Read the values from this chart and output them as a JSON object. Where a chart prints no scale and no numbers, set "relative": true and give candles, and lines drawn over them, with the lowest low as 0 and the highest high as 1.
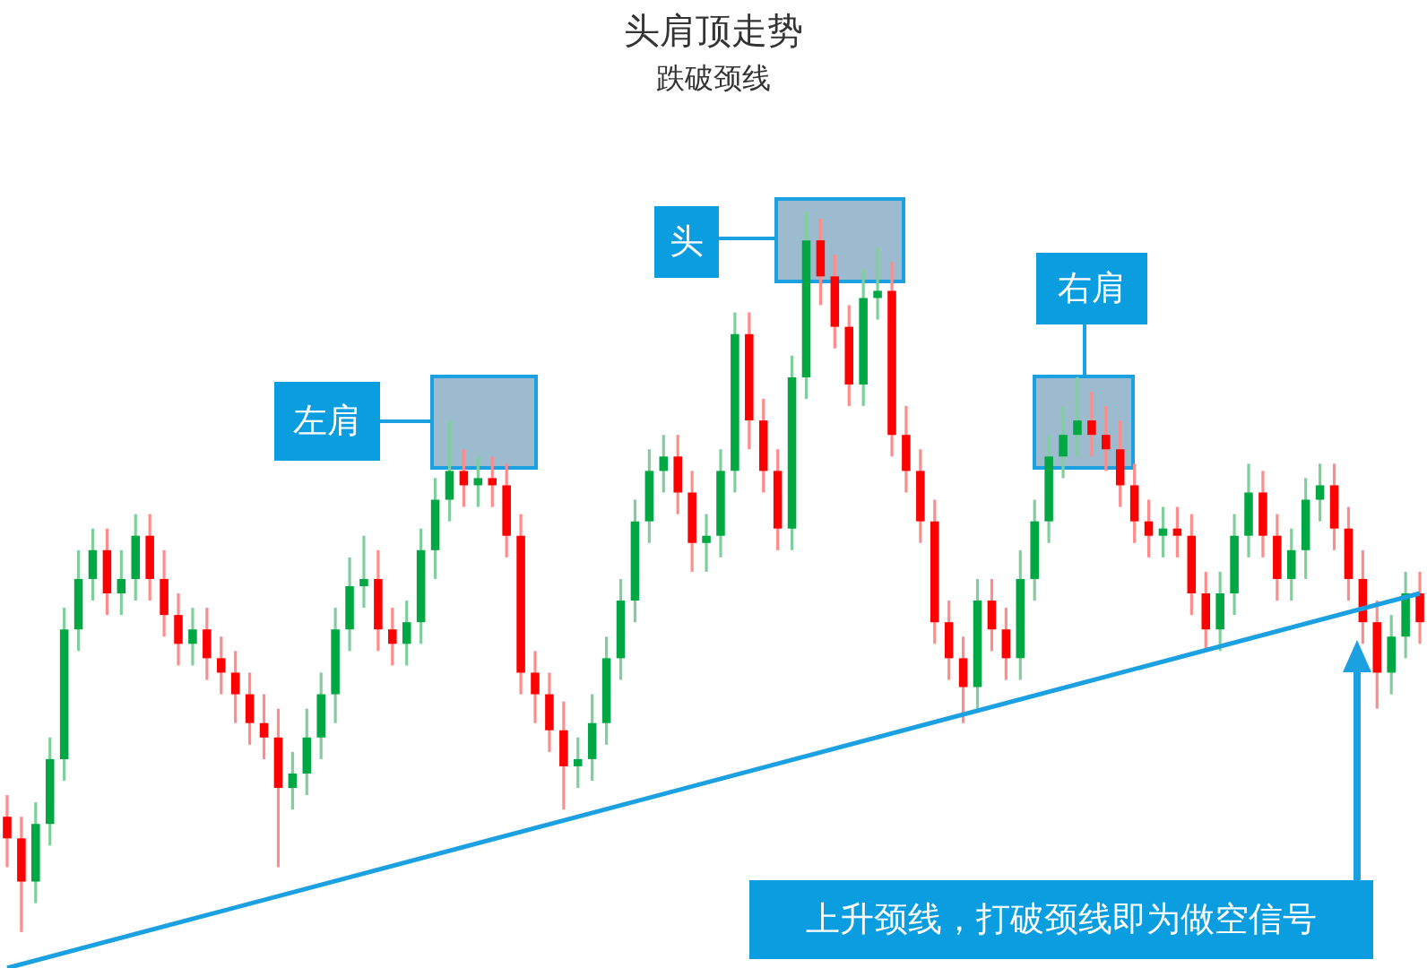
{
  "chart_data": {
    "type": "candlestick",
    "title": "头肩顶走势",
    "subtitle": "跌破颈线",
    "relative": true,
    "tick_labels": false,
    "categories": [
      null,
      null,
      null,
      null,
      null,
      null,
      null,
      null,
      null,
      null,
      null,
      null,
      null,
      null,
      null,
      null,
      null,
      null,
      null,
      null,
      null,
      null,
      null,
      null,
      null,
      null,
      null,
      null,
      null,
      null,
      null,
      null,
      null,
      null,
      null,
      null,
      null,
      null,
      null,
      null,
      null,
      null,
      null,
      null,
      null,
      null,
      null,
      null,
      null,
      null,
      null,
      null,
      null,
      null,
      null,
      null,
      null,
      null,
      null,
      null,
      null,
      null,
      null,
      null,
      null,
      null,
      null,
      null,
      null,
      null,
      null,
      null,
      null,
      null,
      null,
      null,
      null,
      null,
      null,
      null,
      null,
      null,
      null,
      null,
      null,
      null,
      null,
      null,
      null,
      null,
      null,
      null,
      null,
      null,
      null,
      null,
      null,
      null,
      null,
      null
    ],
    "ohlc": [
      [
        0.16,
        0.19,
        0.09,
        0.13
      ],
      [
        0.13,
        0.16,
        0.0,
        0.07
      ],
      [
        0.07,
        0.18,
        0.04,
        0.15
      ],
      [
        0.15,
        0.27,
        0.12,
        0.24
      ],
      [
        0.24,
        0.45,
        0.21,
        0.42
      ],
      [
        0.42,
        0.53,
        0.39,
        0.49
      ],
      [
        0.49,
        0.56,
        0.46,
        0.53
      ],
      [
        0.53,
        0.56,
        0.44,
        0.47
      ],
      [
        0.47,
        0.53,
        0.44,
        0.49
      ],
      [
        0.49,
        0.58,
        0.46,
        0.55
      ],
      [
        0.55,
        0.58,
        0.46,
        0.49
      ],
      [
        0.49,
        0.53,
        0.41,
        0.44
      ],
      [
        0.44,
        0.47,
        0.37,
        0.4
      ],
      [
        0.4,
        0.45,
        0.37,
        0.42
      ],
      [
        0.42,
        0.45,
        0.35,
        0.38
      ],
      [
        0.38,
        0.41,
        0.33,
        0.36
      ],
      [
        0.36,
        0.39,
        0.29,
        0.33
      ],
      [
        0.33,
        0.36,
        0.26,
        0.29
      ],
      [
        0.29,
        0.33,
        0.24,
        0.27
      ],
      [
        0.27,
        0.31,
        0.09,
        0.2
      ],
      [
        0.2,
        0.25,
        0.17,
        0.22
      ],
      [
        0.22,
        0.31,
        0.19,
        0.27
      ],
      [
        0.27,
        0.36,
        0.24,
        0.33
      ],
      [
        0.33,
        0.45,
        0.29,
        0.42
      ],
      [
        0.42,
        0.52,
        0.39,
        0.48
      ],
      [
        0.48,
        0.55,
        0.45,
        0.49
      ],
      [
        0.49,
        0.53,
        0.39,
        0.42
      ],
      [
        0.42,
        0.45,
        0.37,
        0.4
      ],
      [
        0.4,
        0.46,
        0.37,
        0.43
      ],
      [
        0.43,
        0.56,
        0.4,
        0.53
      ],
      [
        0.53,
        0.63,
        0.49,
        0.6
      ],
      [
        0.6,
        0.71,
        0.57,
        0.64
      ],
      [
        0.64,
        0.67,
        0.59,
        0.62
      ],
      [
        0.62,
        0.66,
        0.59,
        0.63
      ],
      [
        0.63,
        0.66,
        0.59,
        0.62
      ],
      [
        0.62,
        0.65,
        0.52,
        0.55
      ],
      [
        0.55,
        0.58,
        0.33,
        0.36
      ],
      [
        0.36,
        0.39,
        0.29,
        0.33
      ],
      [
        0.33,
        0.36,
        0.25,
        0.28
      ],
      [
        0.28,
        0.32,
        0.17,
        0.23
      ],
      [
        0.23,
        0.27,
        0.2,
        0.24
      ],
      [
        0.24,
        0.33,
        0.21,
        0.29
      ],
      [
        0.29,
        0.41,
        0.26,
        0.38
      ],
      [
        0.38,
        0.49,
        0.35,
        0.46
      ],
      [
        0.46,
        0.6,
        0.43,
        0.57
      ],
      [
        0.57,
        0.67,
        0.54,
        0.64
      ],
      [
        0.64,
        0.69,
        0.61,
        0.66
      ],
      [
        0.66,
        0.69,
        0.58,
        0.61
      ],
      [
        0.61,
        0.64,
        0.5,
        0.54
      ],
      [
        0.54,
        0.58,
        0.5,
        0.55
      ],
      [
        0.55,
        0.67,
        0.52,
        0.64
      ],
      [
        0.64,
        0.86,
        0.61,
        0.83
      ],
      [
        0.83,
        0.86,
        0.67,
        0.71
      ],
      [
        0.71,
        0.74,
        0.61,
        0.64
      ],
      [
        0.64,
        0.67,
        0.53,
        0.56
      ],
      [
        0.56,
        0.8,
        0.53,
        0.77
      ],
      [
        0.77,
        1.0,
        0.74,
        0.96
      ],
      [
        0.96,
        0.99,
        0.87,
        0.91
      ],
      [
        0.91,
        0.94,
        0.81,
        0.84
      ],
      [
        0.84,
        0.87,
        0.73,
        0.76
      ],
      [
        0.76,
        0.92,
        0.73,
        0.88
      ],
      [
        0.88,
        0.95,
        0.85,
        0.89
      ],
      [
        0.89,
        0.93,
        0.66,
        0.69
      ],
      [
        0.69,
        0.73,
        0.61,
        0.64
      ],
      [
        0.64,
        0.67,
        0.54,
        0.57
      ],
      [
        0.57,
        0.6,
        0.4,
        0.43
      ],
      [
        0.43,
        0.46,
        0.35,
        0.38
      ],
      [
        0.38,
        0.41,
        0.29,
        0.34
      ],
      [
        0.34,
        0.49,
        0.31,
        0.46
      ],
      [
        0.46,
        0.49,
        0.39,
        0.42
      ],
      [
        0.42,
        0.45,
        0.35,
        0.38
      ],
      [
        0.38,
        0.53,
        0.35,
        0.49
      ],
      [
        0.49,
        0.6,
        0.46,
        0.57
      ],
      [
        0.57,
        0.69,
        0.54,
        0.66
      ],
      [
        0.66,
        0.73,
        0.63,
        0.69
      ],
      [
        0.69,
        0.77,
        0.66,
        0.71
      ],
      [
        0.71,
        0.75,
        0.66,
        0.69
      ],
      [
        0.69,
        0.73,
        0.64,
        0.67
      ],
      [
        0.67,
        0.71,
        0.59,
        0.62
      ],
      [
        0.62,
        0.65,
        0.54,
        0.57
      ],
      [
        0.57,
        0.6,
        0.52,
        0.55
      ],
      [
        0.55,
        0.59,
        0.52,
        0.56
      ],
      [
        0.56,
        0.59,
        0.52,
        0.55
      ],
      [
        0.55,
        0.58,
        0.44,
        0.47
      ],
      [
        0.47,
        0.5,
        0.39,
        0.42
      ],
      [
        0.42,
        0.5,
        0.39,
        0.47
      ],
      [
        0.47,
        0.58,
        0.44,
        0.55
      ],
      [
        0.55,
        0.65,
        0.52,
        0.61
      ],
      [
        0.61,
        0.64,
        0.52,
        0.55
      ],
      [
        0.55,
        0.58,
        0.46,
        0.49
      ],
      [
        0.49,
        0.56,
        0.46,
        0.53
      ],
      [
        0.53,
        0.63,
        0.49,
        0.6
      ],
      [
        0.6,
        0.65,
        0.57,
        0.62
      ],
      [
        0.62,
        0.65,
        0.53,
        0.56
      ],
      [
        0.56,
        0.59,
        0.46,
        0.49
      ],
      [
        0.49,
        0.53,
        0.4,
        0.43
      ],
      [
        0.43,
        0.46,
        0.31,
        0.36
      ],
      [
        0.36,
        0.44,
        0.33,
        0.41
      ],
      [
        0.41,
        0.5,
        0.38,
        0.47
      ],
      [
        0.47,
        0.5,
        0.4,
        0.43
      ]
    ],
    "series": [
      {
        "type": "line",
        "color": "#1ba1e2",
        "values": [
          -0.05,
          null,
          null,
          null,
          null,
          null,
          null,
          null,
          null,
          null,
          null,
          null,
          null,
          null,
          null,
          null,
          null,
          null,
          null,
          null,
          null,
          null,
          null,
          null,
          null,
          null,
          null,
          null,
          null,
          null,
          null,
          null,
          null,
          null,
          null,
          null,
          null,
          null,
          null,
          null,
          null,
          null,
          null,
          null,
          null,
          null,
          null,
          null,
          null,
          null,
          null,
          null,
          null,
          null,
          null,
          null,
          null,
          null,
          null,
          null,
          null,
          null,
          null,
          null,
          null,
          null,
          null,
          null,
          null,
          null,
          null,
          null,
          null,
          null,
          null,
          null,
          null,
          null,
          null,
          null,
          null,
          null,
          null,
          null,
          null,
          null,
          null,
          null,
          null,
          null,
          null,
          null,
          null,
          null,
          null,
          null,
          null,
          null,
          null,
          0.47
        ]
      }
    ],
    "annotations": [
      "左肩",
      "头",
      "右肩",
      "上升颈线，打破颈线即为做空信号"
    ]
  }
}
